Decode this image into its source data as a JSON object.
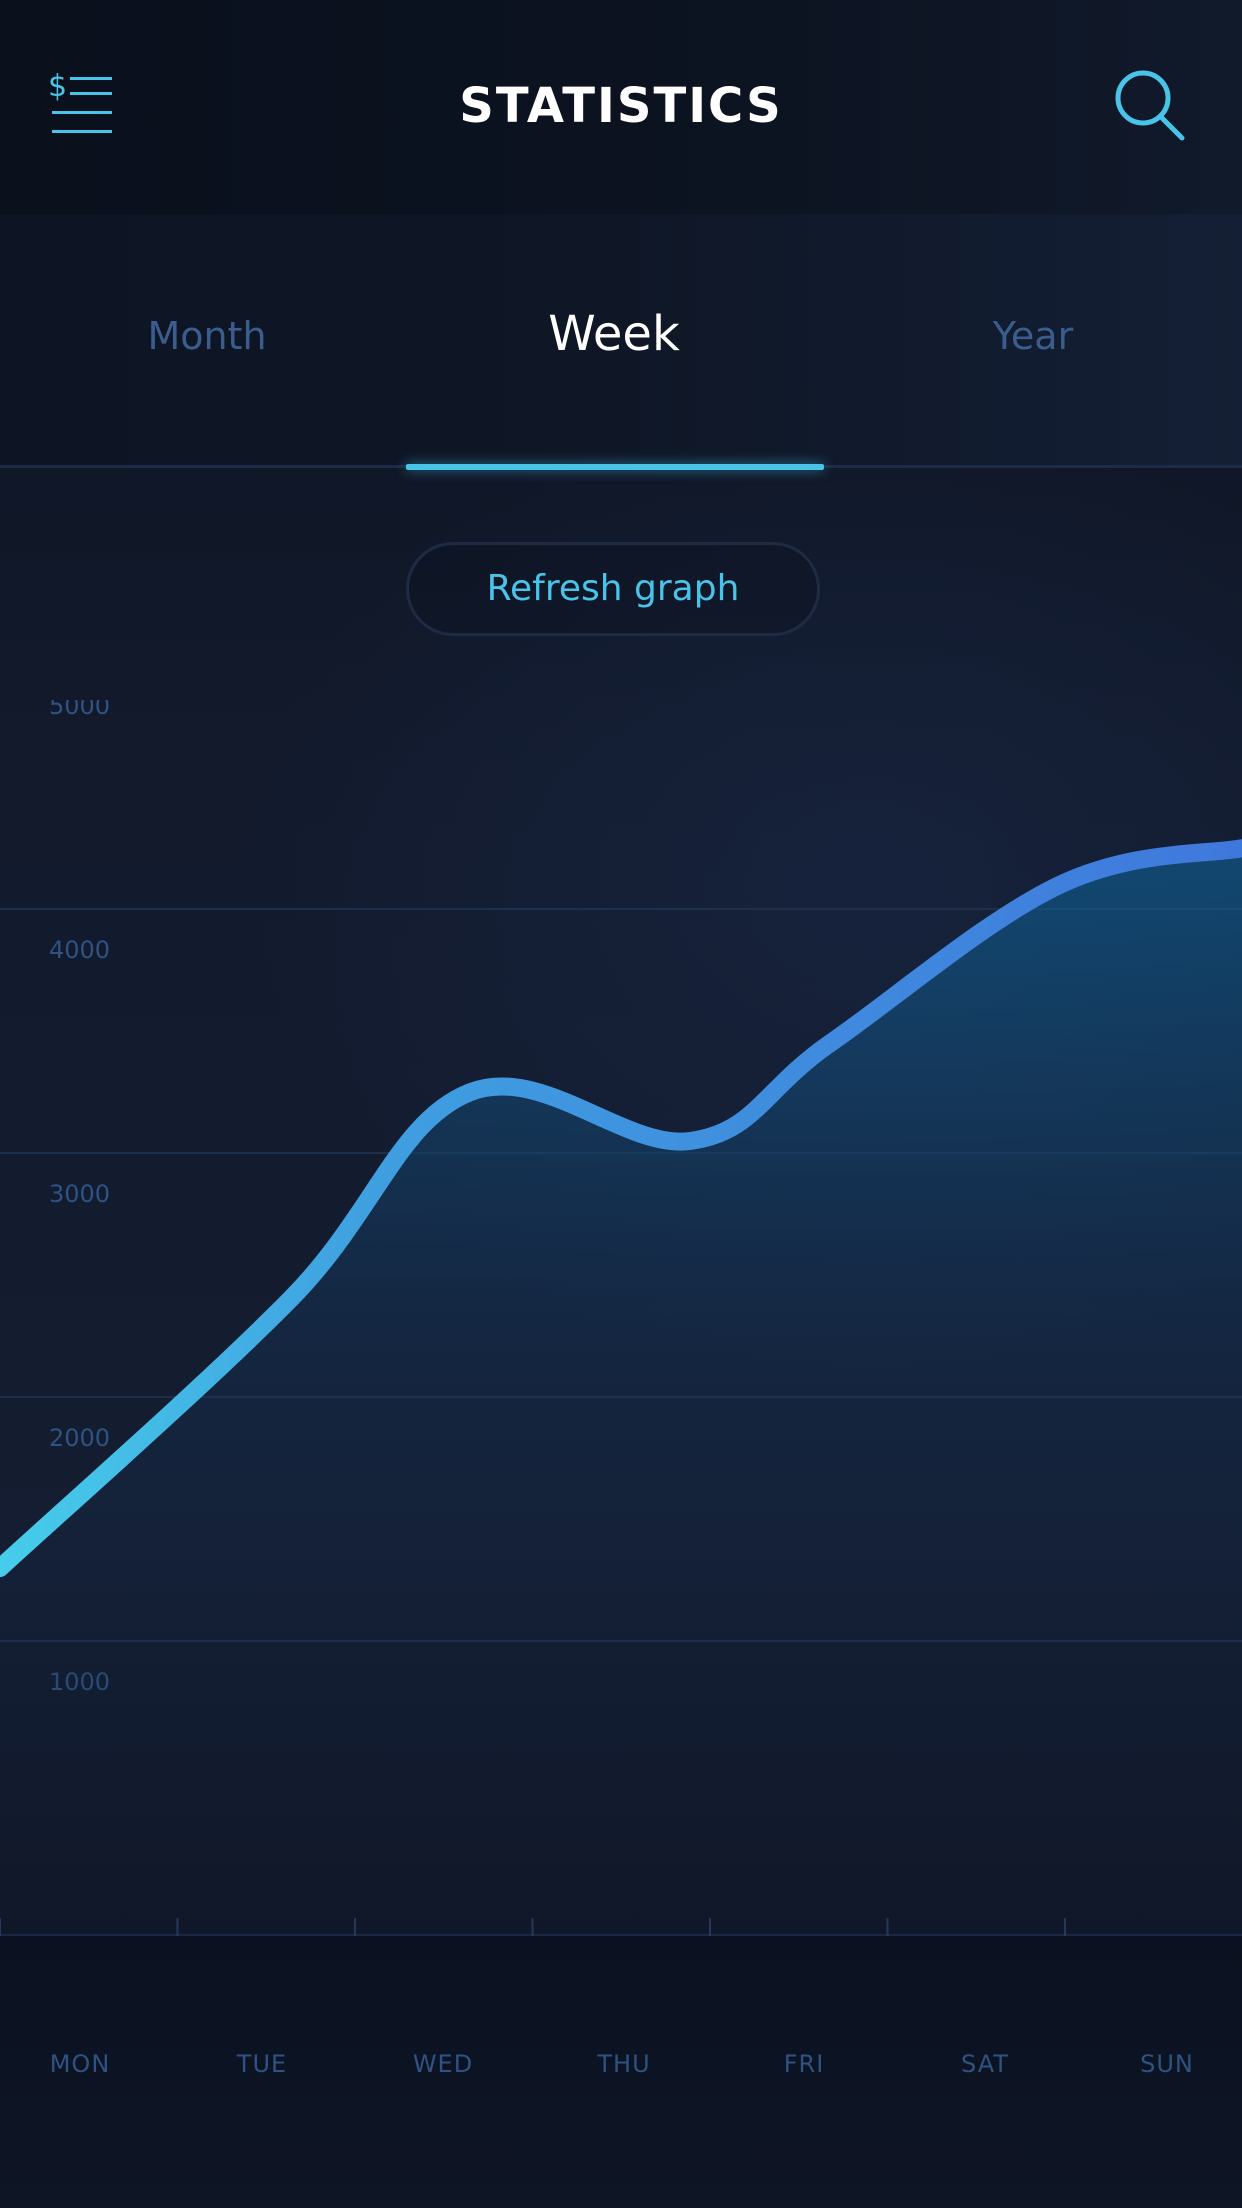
{
  "header": {
    "title": "STATISTICS",
    "menu_icon": "dollar-list-menu-icon",
    "search_icon": "search-icon"
  },
  "tabs": [
    {
      "label": "Month",
      "active": false
    },
    {
      "label": "Week",
      "active": true
    },
    {
      "label": "Year",
      "active": false
    }
  ],
  "refresh_label": "Refresh graph",
  "colors": {
    "accent": "#4ac3e8",
    "line_start": "#46cdea",
    "line_end": "#3f78dc",
    "axis_text": "#2f5283"
  },
  "chart_data": {
    "type": "line",
    "categories": [
      "MON",
      "TUE",
      "WED",
      "THU",
      "FRI",
      "SAT",
      "SUN"
    ],
    "series": [
      {
        "values": [
          1500,
          2600,
          3450,
          3250,
          3650,
          4300,
          4450
        ]
      }
    ],
    "y_ticks": [
      5000,
      4000,
      3000,
      2000,
      1000
    ],
    "ylim": [
      0,
      5200
    ],
    "grid": true
  }
}
